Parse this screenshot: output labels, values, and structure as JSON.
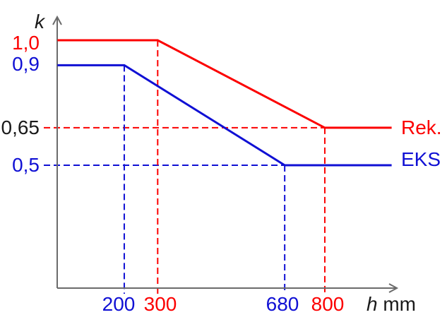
{
  "figure": {
    "background": "#ffffff",
    "axis_color": "#6b6b6b",
    "text_color": "#1a1a1a"
  },
  "chart_data": {
    "type": "line",
    "title": "",
    "ylabel": "k",
    "xlabel_italic": "h",
    "xlabel_unit": "mm",
    "xlim": [
      0,
      1000
    ],
    "ylim": [
      0,
      1.05
    ],
    "grid": false,
    "legend_position": "right-of-line-ends",
    "series": [
      {
        "name": "Rek.",
        "color": "#fc0000",
        "points": [
          [
            0,
            1.0
          ],
          [
            300,
            1.0
          ],
          [
            800,
            0.65
          ],
          [
            1000,
            0.65
          ]
        ]
      },
      {
        "name": "EKS",
        "color": "#1010d4",
        "points": [
          [
            0,
            0.9
          ],
          [
            200,
            0.9
          ],
          [
            680,
            0.5
          ],
          [
            1000,
            0.5
          ]
        ]
      }
    ],
    "y_ticks": [
      {
        "label": "1,0",
        "value": 1.0,
        "color": "#fc0000"
      },
      {
        "label": "0,9",
        "value": 0.9,
        "color": "#1010d4"
      },
      {
        "label": "0,65",
        "value": 0.65,
        "color": "#1a1a1a"
      },
      {
        "label": "0,5",
        "value": 0.5,
        "color": "#1010d4"
      }
    ],
    "x_ticks": [
      {
        "label": "200",
        "value": 200,
        "color": "#1010d4"
      },
      {
        "label": "300",
        "value": 300,
        "color": "#fc0000"
      },
      {
        "label": "680",
        "value": 680,
        "color": "#1010d4"
      },
      {
        "label": "800",
        "value": 800,
        "color": "#fc0000"
      }
    ],
    "guides": [
      {
        "orientation": "h",
        "value": 0.65,
        "to": 800,
        "color": "#fc0000"
      },
      {
        "orientation": "h",
        "value": 0.5,
        "to": 680,
        "color": "#1010d4"
      },
      {
        "orientation": "v",
        "value": 200,
        "from": 0.9,
        "color": "#1010d4"
      },
      {
        "orientation": "v",
        "value": 300,
        "from": 1.0,
        "color": "#fc0000"
      },
      {
        "orientation": "v",
        "value": 680,
        "from": 0.5,
        "color": "#1010d4"
      },
      {
        "orientation": "v",
        "value": 800,
        "from": 0.65,
        "color": "#fc0000"
      }
    ]
  }
}
